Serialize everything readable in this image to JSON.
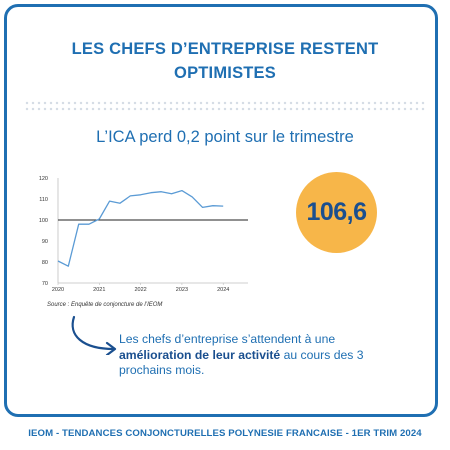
{
  "header": {
    "title_line1": "LES CHEFS D’ENTREPRISE RESTENT",
    "title_line2": "OPTIMISTES",
    "subtitle": "L’ICA perd 0,2 point sur le trimestre"
  },
  "badge": {
    "value": "106,6",
    "color": "#f7b649"
  },
  "note": {
    "text_before": "Les chefs d’entreprise s’attendent à une ",
    "text_bold": "amélioration de leur activité",
    "text_after": " au cours des 3 prochains mois."
  },
  "footer": {
    "text": "IEOM - TENDANCES CONJONCTURELLES POLYNESIE FRANCAISE - 1ER TRIM 2024"
  },
  "chart_data": {
    "type": "line",
    "source": "Source : Enquête de conjoncture de l’IEOM",
    "x_tick_labels": [
      "2020",
      "2021",
      "2022",
      "2023",
      "2024"
    ],
    "y_tick_labels": [
      "70",
      "80",
      "90",
      "100",
      "110",
      "120"
    ],
    "ylim": [
      70,
      120
    ],
    "xlim": [
      2020.0,
      2024.6
    ],
    "reference_line": 100,
    "series": [
      {
        "color": "#5b9bd5",
        "points": [
          [
            2020.0,
            80.5
          ],
          [
            2020.25,
            78
          ],
          [
            2020.5,
            98
          ],
          [
            2020.75,
            98
          ],
          [
            2021.0,
            100.5
          ],
          [
            2021.25,
            109
          ],
          [
            2021.5,
            108
          ],
          [
            2021.75,
            111.5
          ],
          [
            2022.0,
            112
          ],
          [
            2022.25,
            113
          ],
          [
            2022.5,
            113.5
          ],
          [
            2022.75,
            112.5
          ],
          [
            2023.0,
            114
          ],
          [
            2023.25,
            111
          ],
          [
            2023.5,
            106
          ],
          [
            2023.75,
            106.8
          ],
          [
            2024.0,
            106.6
          ]
        ]
      }
    ]
  }
}
